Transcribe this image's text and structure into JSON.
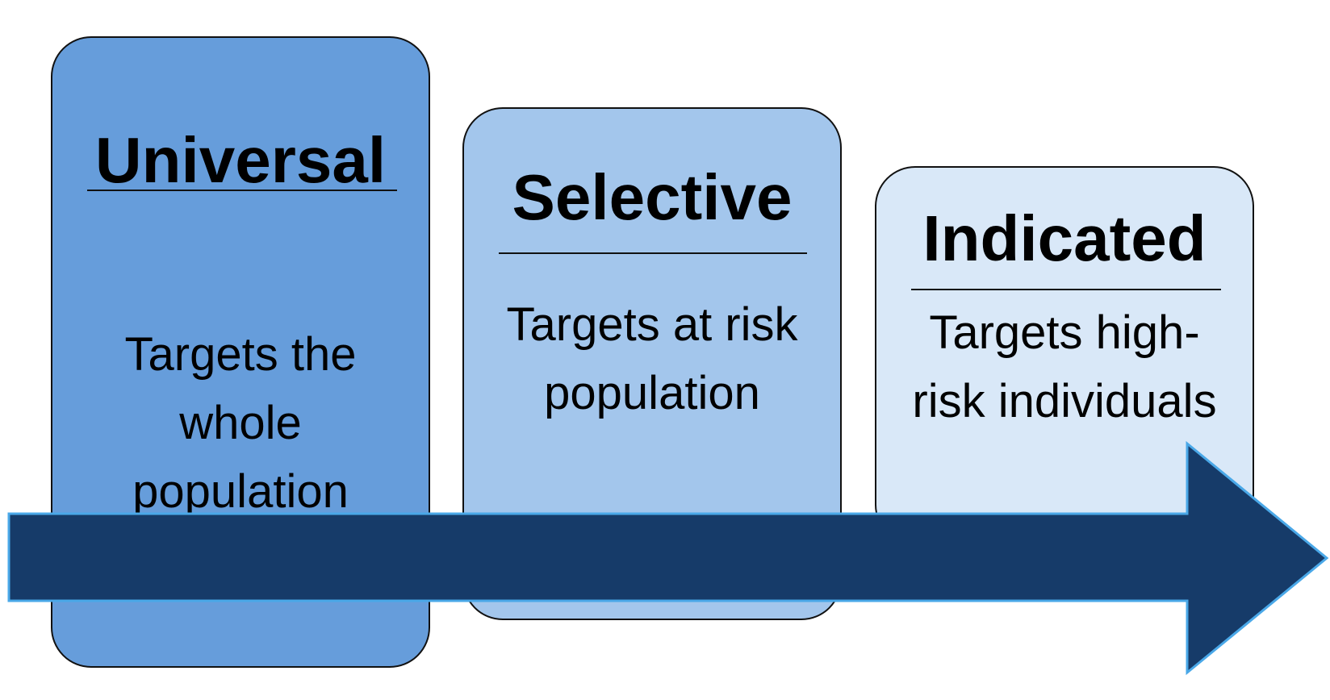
{
  "colors": {
    "universal": "#669ddb",
    "selective": "#a3c6ec",
    "indicated": "#d9e8f8",
    "arrow_fill": "#163b69",
    "arrow_stroke": "#4aa8e8"
  },
  "cards": [
    {
      "title": "Universal",
      "description": "Targets the\nwhole\npopulation"
    },
    {
      "title": "Selective",
      "description": "Targets at risk\npopulation"
    },
    {
      "title": "Indicated",
      "description": "Targets high-\nrisk individuals"
    }
  ]
}
